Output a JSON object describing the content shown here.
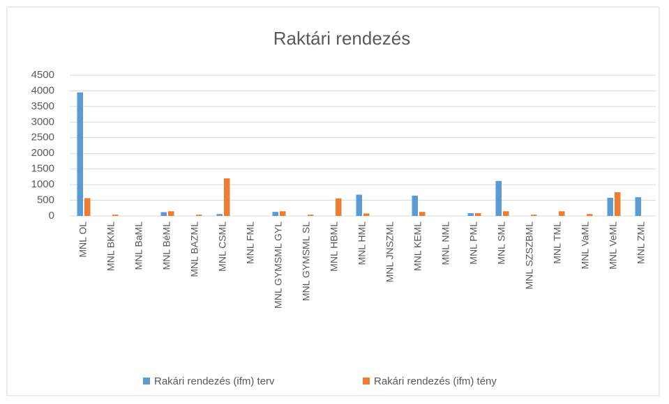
{
  "chart_data": {
    "type": "bar",
    "title": "Raktári rendezés",
    "categories": [
      "MNL OL",
      "MNL BKML",
      "MNL BaML",
      "MNL BéML",
      "MNL BAZML",
      "MNL CSML",
      "MNL FML",
      "MNL GYMSML GYL",
      "MNL GYMSML SL",
      "MNL HBML",
      "MNL HML",
      "MNL JNSZML",
      "MNL KEML",
      "MNL NML",
      "MNL PML",
      "MNL SML",
      "MNL SZSZBML",
      "MNL TML",
      "MNL VaML",
      "MNL VeML",
      "MNL ZML"
    ],
    "series": [
      {
        "name": "Rakári rendezés (ifm) terv",
        "color": "#5b9bd5",
        "values": [
          3950,
          0,
          0,
          120,
          0,
          60,
          0,
          130,
          0,
          0,
          680,
          0,
          650,
          0,
          90,
          1120,
          0,
          0,
          0,
          580,
          600
        ]
      },
      {
        "name": "Rakári rendezés (ifm) tény",
        "color": "#ed7d31",
        "values": [
          570,
          40,
          0,
          150,
          40,
          1200,
          0,
          150,
          40,
          560,
          80,
          0,
          130,
          0,
          90,
          150,
          40,
          150,
          60,
          760,
          0
        ]
      }
    ],
    "ylim": [
      0,
      4500
    ],
    "yticks": [
      0,
      500,
      1000,
      1500,
      2000,
      2500,
      3000,
      3500,
      4000,
      4500
    ],
    "grid": true,
    "legend": "bottom"
  }
}
